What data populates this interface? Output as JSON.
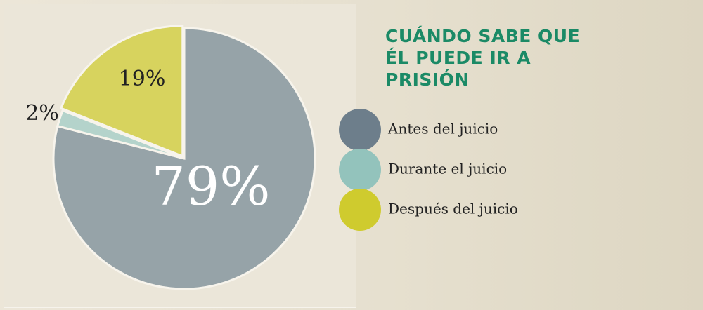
{
  "chart_data": {
    "type": "pie",
    "title": "CUÁNDO SABE QUE ÉL PUEDE IR A PRISIÓN",
    "categories": [
      "Antes del juicio",
      "Durante el juicio",
      "Después del juicio"
    ],
    "values": [
      79,
      2,
      19
    ],
    "value_labels": [
      "79%",
      "2%",
      "19%"
    ],
    "colors": [
      "#6d7e8b",
      "#93c3bc",
      "#cfcb2e"
    ]
  }
}
